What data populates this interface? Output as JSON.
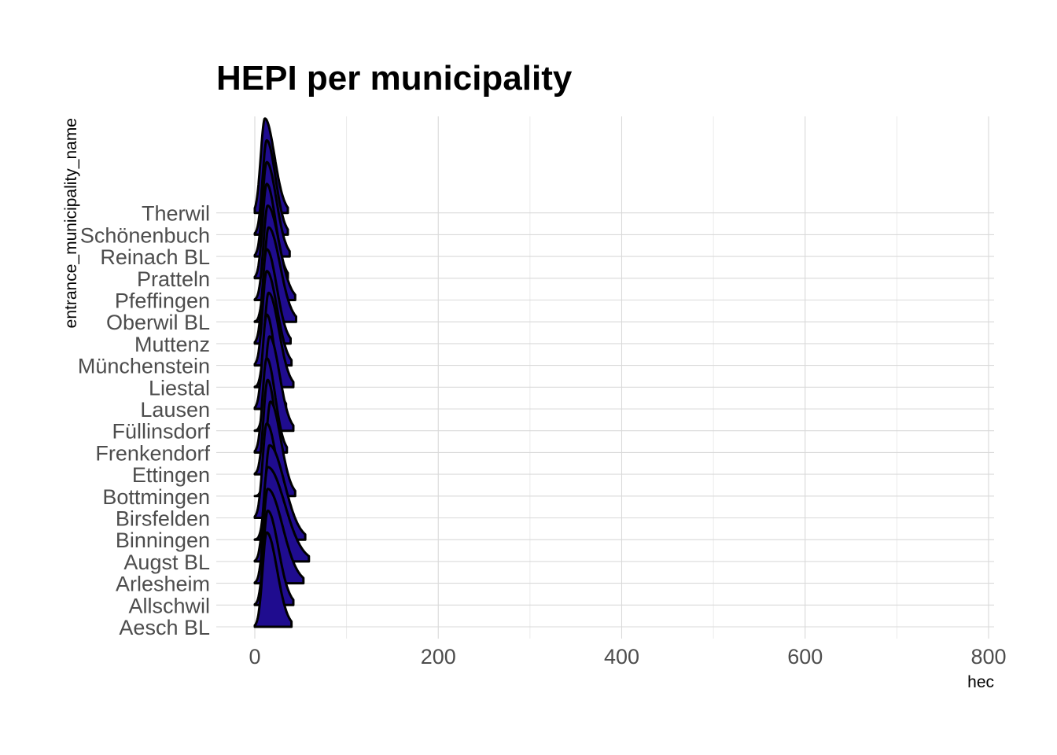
{
  "chart_data": {
    "type": "ridgeline",
    "title": "HEPI per municipality",
    "xlabel": "hec",
    "ylabel": "entrance_municipality_name",
    "xlim": [
      -20,
      808
    ],
    "x_ticks": [
      0,
      200,
      400,
      600,
      800
    ],
    "categories": [
      "Aesch BL",
      "Allschwil",
      "Arlesheim",
      "Augst BL",
      "Binningen",
      "Birsfelden",
      "Bottmingen",
      "Ettingen",
      "Frenkendorf",
      "Füllinsdorf",
      "Lausen",
      "Liestal",
      "Münchenstein",
      "Muttenz",
      "Oberwil BL",
      "Pfeffingen",
      "Pratteln",
      "Reinach BL",
      "Schönenbuch",
      "Therwil"
    ],
    "fill_color": "#1f0c8f",
    "line_color": "#000000",
    "grid": true,
    "series": [
      {
        "name": "Aesch BL",
        "peak": 13,
        "max": 40
      },
      {
        "name": "Allschwil",
        "peak": 14,
        "max": 42
      },
      {
        "name": "Arlesheim",
        "peak": 14,
        "max": 53
      },
      {
        "name": "Augst BL",
        "peak": 14,
        "max": 59
      },
      {
        "name": "Binningen",
        "peak": 16,
        "max": 55
      },
      {
        "name": "Birsfelden",
        "peak": 13,
        "max": 39
      },
      {
        "name": "Bottmingen",
        "peak": 17,
        "max": 44
      },
      {
        "name": "Ettingen",
        "peak": 14,
        "max": 34
      },
      {
        "name": "Frenkendorf",
        "peak": 13,
        "max": 35
      },
      {
        "name": "Füllinsdorf",
        "peak": 16,
        "max": 42
      },
      {
        "name": "Lausen",
        "peak": 13,
        "max": 34
      },
      {
        "name": "Liestal",
        "peak": 15,
        "max": 42
      },
      {
        "name": "Münchenstein",
        "peak": 13,
        "max": 40
      },
      {
        "name": "Muttenz",
        "peak": 13,
        "max": 39
      },
      {
        "name": "Oberwil BL",
        "peak": 15,
        "max": 45
      },
      {
        "name": "Pfeffingen",
        "peak": 14,
        "max": 44
      },
      {
        "name": "Pratteln",
        "peak": 13,
        "max": 36
      },
      {
        "name": "Reinach BL",
        "peak": 13,
        "max": 38
      },
      {
        "name": "Schönenbuch",
        "peak": 13,
        "max": 36
      },
      {
        "name": "Therwil",
        "peak": 11,
        "max": 36
      }
    ]
  }
}
